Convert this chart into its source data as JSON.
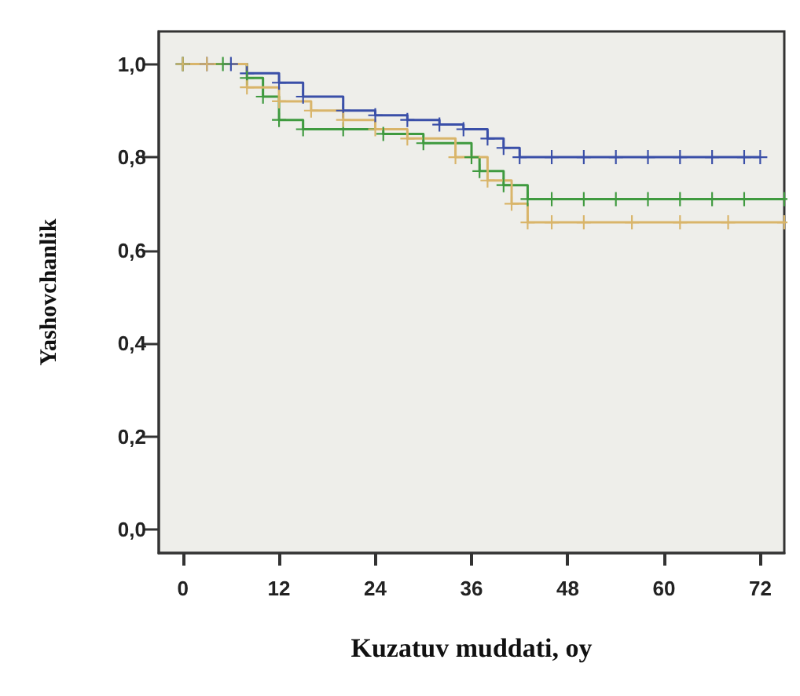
{
  "chart_data": {
    "type": "step",
    "xlabel": "Kuzatuv muddati, oy",
    "ylabel": "Yashovchanlik",
    "xlim": [
      -3,
      75
    ],
    "xticks": [
      0,
      12,
      24,
      36,
      48,
      60,
      72
    ],
    "ylim": [
      -0.05,
      1.07
    ],
    "yticks": [
      {
        "value": 0,
        "label": "0,0"
      },
      {
        "value": 0.2,
        "label": "0,2"
      },
      {
        "value": 0.4,
        "label": "0,4"
      },
      {
        "value": 0.6,
        "label": "0,6"
      },
      {
        "value": 0.8,
        "label": "0,8"
      },
      {
        "value": 1,
        "label": "1,0"
      }
    ],
    "grid": false,
    "marker": "cross",
    "line_style": "solid",
    "series": [
      {
        "color": "#3a4fa8",
        "x": [
          0,
          3,
          6,
          8,
          12,
          15,
          20,
          24,
          28,
          32,
          35,
          38,
          40,
          42,
          46,
          50,
          54,
          58,
          62,
          66,
          70,
          72
        ],
        "values": [
          1,
          1,
          1,
          0.98,
          0.96,
          0.93,
          0.9,
          0.89,
          0.88,
          0.87,
          0.86,
          0.84,
          0.82,
          0.8,
          0.8,
          0.8,
          0.8,
          0.8,
          0.8,
          0.8,
          0.8,
          0.8
        ]
      },
      {
        "color": "#3f9a3f",
        "x": [
          0,
          5,
          8,
          10,
          12,
          15,
          20,
          25,
          30,
          36,
          37,
          40,
          43,
          46,
          50,
          54,
          58,
          62,
          66,
          70,
          75
        ],
        "values": [
          1,
          1,
          0.97,
          0.93,
          0.88,
          0.86,
          0.86,
          0.85,
          0.83,
          0.8,
          0.77,
          0.74,
          0.71,
          0.71,
          0.71,
          0.71,
          0.71,
          0.71,
          0.71,
          0.71,
          0.71
        ]
      },
      {
        "color": "#d9b56a",
        "x": [
          0,
          3,
          8,
          12,
          16,
          20,
          24,
          28,
          34,
          38,
          41,
          43,
          46,
          50,
          56,
          62,
          68,
          75
        ],
        "values": [
          1,
          1,
          0.95,
          0.92,
          0.9,
          0.88,
          0.86,
          0.84,
          0.8,
          0.75,
          0.7,
          0.66,
          0.66,
          0.66,
          0.66,
          0.66,
          0.66,
          0.66
        ]
      }
    ]
  }
}
